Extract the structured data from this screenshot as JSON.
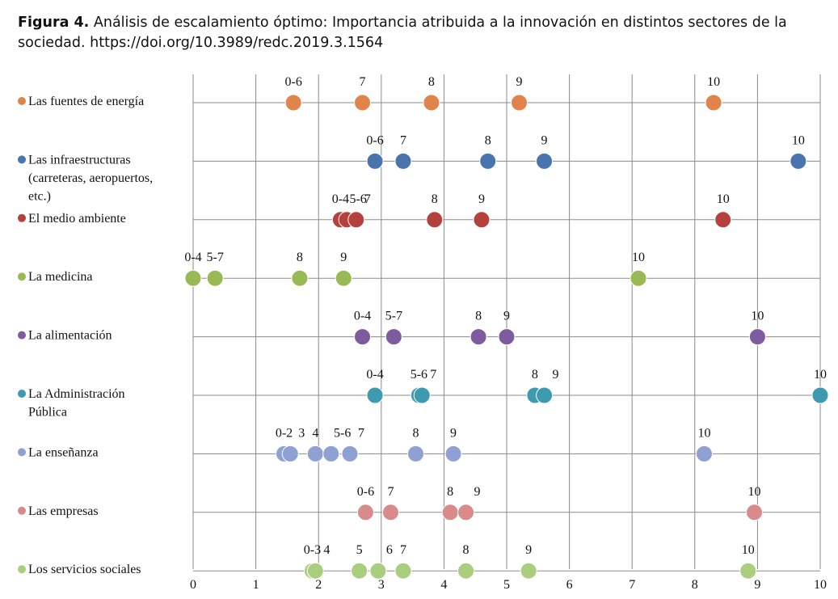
{
  "caption": {
    "lead": "Figura 4.",
    "text": "Análisis de escalamiento óptimo: Importancia atribuida a la innovación en distintos sectores de la sociedad. https://doi.org/10.3989/redc.2019.3.1564"
  },
  "chart_data": {
    "type": "scatter",
    "xlim": [
      0,
      10
    ],
    "x_ticks": [
      "0",
      "1",
      "2",
      "3",
      "4",
      "5",
      "6",
      "7",
      "8",
      "9",
      "10"
    ],
    "grid": true,
    "series": [
      {
        "label_lines": [
          "Las fuentes de energía"
        ],
        "color": "#E1844B",
        "points": [
          {
            "x": 1.6,
            "label": "0-6"
          },
          {
            "x": 2.7,
            "label": "7"
          },
          {
            "x": 3.8,
            "label": "8"
          },
          {
            "x": 5.2,
            "label": "9"
          },
          {
            "x": 8.3,
            "label": "10"
          }
        ]
      },
      {
        "label_lines": [
          "Las infraestructuras",
          "(carreteras, aeropuertos,",
          "etc.)"
        ],
        "color": "#4A74AE",
        "points": [
          {
            "x": 2.9,
            "label": "0-6"
          },
          {
            "x": 3.35,
            "label": "7"
          },
          {
            "x": 4.7,
            "label": "8"
          },
          {
            "x": 5.6,
            "label": "9"
          },
          {
            "x": 9.65,
            "label": "10"
          }
        ]
      },
      {
        "label_lines": [
          "El medio ambiente"
        ],
        "color": "#B5413F",
        "points": [
          {
            "x": 2.35,
            "label": "0-4"
          },
          {
            "x": 2.45,
            "label": "5-6"
          },
          {
            "x": 2.6,
            "label": "7"
          },
          {
            "x": 3.85,
            "label": "8"
          },
          {
            "x": 4.6,
            "label": "9"
          },
          {
            "x": 8.45,
            "label": "10"
          }
        ]
      },
      {
        "label_lines": [
          "La medicina"
        ],
        "color": "#98B954",
        "points": [
          {
            "x": 0.0,
            "label": "0-4"
          },
          {
            "x": 0.35,
            "label": "5-7"
          },
          {
            "x": 1.7,
            "label": "8"
          },
          {
            "x": 2.4,
            "label": "9"
          },
          {
            "x": 7.1,
            "label": "10"
          }
        ]
      },
      {
        "label_lines": [
          "La alimentación"
        ],
        "color": "#7D5B9E",
        "points": [
          {
            "x": 2.7,
            "label": "0-4"
          },
          {
            "x": 3.2,
            "label": "5-7"
          },
          {
            "x": 4.55,
            "label": "8"
          },
          {
            "x": 5.0,
            "label": "9"
          },
          {
            "x": 9.0,
            "label": "10"
          }
        ]
      },
      {
        "label_lines": [
          "La Administración",
          "Pública"
        ],
        "color": "#3E9AAE",
        "points": [
          {
            "x": 2.9,
            "label": "0-4"
          },
          {
            "x": 3.6,
            "label": "5-6"
          },
          {
            "x": 3.65,
            "label": "7"
          },
          {
            "x": 5.45,
            "label": "8"
          },
          {
            "x": 5.6,
            "label": "9"
          },
          {
            "x": 10.0,
            "label": "10"
          }
        ]
      },
      {
        "label_lines": [
          "La enseñanza"
        ],
        "color": "#8EA1D2",
        "points": [
          {
            "x": 1.45,
            "label": "0-2"
          },
          {
            "x": 1.55,
            "label": "3"
          },
          {
            "x": 1.95,
            "label": "4"
          },
          {
            "x": 2.2,
            "label": "5-6"
          },
          {
            "x": 2.5,
            "label": "7"
          },
          {
            "x": 3.55,
            "label": "8"
          },
          {
            "x": 4.15,
            "label": "9"
          },
          {
            "x": 8.15,
            "label": "10"
          }
        ]
      },
      {
        "label_lines": [
          "Las empresas"
        ],
        "color": "#D98B8B",
        "points": [
          {
            "x": 2.75,
            "label": "0-6"
          },
          {
            "x": 3.15,
            "label": "7"
          },
          {
            "x": 4.1,
            "label": "8"
          },
          {
            "x": 4.35,
            "label": "9"
          },
          {
            "x": 8.95,
            "label": "10"
          }
        ]
      },
      {
        "label_lines": [
          "Los servicios sociales"
        ],
        "color": "#A9CF7E",
        "points": [
          {
            "x": 1.9,
            "label": "0-3"
          },
          {
            "x": 1.95,
            "label": "4"
          },
          {
            "x": 2.65,
            "label": "5"
          },
          {
            "x": 2.95,
            "label": "6"
          },
          {
            "x": 3.35,
            "label": "7"
          },
          {
            "x": 4.35,
            "label": "8"
          },
          {
            "x": 5.35,
            "label": "9"
          },
          {
            "x": 8.85,
            "label": "10"
          }
        ]
      }
    ]
  }
}
